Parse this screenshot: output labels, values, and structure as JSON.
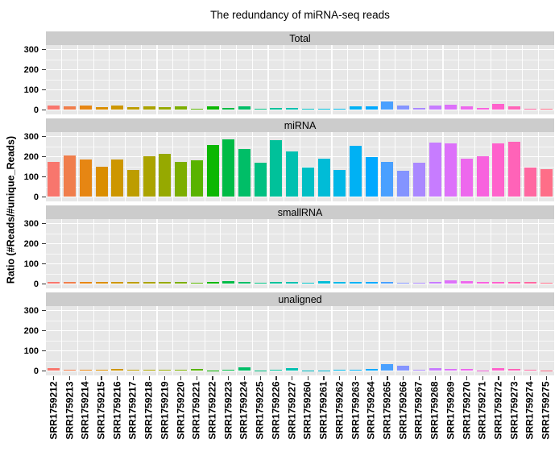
{
  "title": "The redundancy of miRNA-seq reads",
  "y_axis": {
    "label": "Ratio (#Reads/#unique_Reads)",
    "tick_labels": [
      "0",
      "100",
      "200",
      "300"
    ]
  },
  "chart_data": {
    "type": "bar",
    "title": "The redundancy of miRNA-seq reads",
    "xlabel": "",
    "ylabel": "Ratio (#Reads/#unique_Reads)",
    "ylim": [
      0,
      330
    ],
    "yticks": [
      0,
      100,
      200,
      300
    ],
    "yticks_minor": [
      50,
      150,
      250
    ],
    "grid": "white major and minor gridlines on gray panels",
    "legend": "none",
    "facet_layout": "rows",
    "facet_labels": [
      "Total",
      "miRNA",
      "smallRNA",
      "unaligned"
    ],
    "categories": [
      "SRR1759212",
      "SRR1759213",
      "SRR1759214",
      "SRR1759215",
      "SRR1759216",
      "SRR1759217",
      "SRR1759218",
      "SRR1759219",
      "SRR1759220",
      "SRR1759221",
      "SRR1759222",
      "SRR1759223",
      "SRR1759224",
      "SRR1759225",
      "SRR1759226",
      "SRR1759227",
      "SRR1759260",
      "SRR1759261",
      "SRR1759262",
      "SRR1759263",
      "SRR1759264",
      "SRR1759265",
      "SRR1759266",
      "SRR1759267",
      "SRR1759268",
      "SRR1759269",
      "SRR1759270",
      "SRR1759271",
      "SRR1759272",
      "SRR1759273",
      "SRR1759274",
      "SRR1759275"
    ],
    "facets": [
      {
        "name": "Total",
        "values": [
          22,
          20,
          22,
          13,
          22,
          13,
          17,
          15,
          17,
          8,
          18,
          10,
          20,
          7,
          9,
          9,
          6,
          6,
          7,
          17,
          20,
          42,
          22,
          9,
          24,
          25,
          18,
          10,
          30,
          20,
          7,
          5
        ]
      },
      {
        "name": "miRNA",
        "values": [
          175,
          205,
          185,
          150,
          185,
          133,
          204,
          214,
          175,
          182,
          260,
          288,
          240,
          170,
          282,
          227,
          145,
          190,
          135,
          255,
          200,
          175,
          132,
          172,
          270,
          268,
          190,
          203,
          268,
          275,
          145,
          140
        ]
      },
      {
        "name": "smallRNA",
        "values": [
          10,
          10,
          11,
          9,
          10,
          9,
          9,
          9,
          10,
          8,
          12,
          13,
          10,
          7,
          9,
          9,
          8,
          15,
          9,
          9,
          10,
          9,
          8,
          8,
          12,
          20,
          13,
          10,
          10,
          10,
          9,
          8
        ]
      },
      {
        "name": "unaligned",
        "values": [
          13,
          5,
          7,
          7,
          10,
          7,
          7,
          8,
          8,
          12,
          3,
          8,
          18,
          4,
          6,
          16,
          4,
          4,
          5,
          6,
          10,
          33,
          25,
          7,
          15,
          10,
          11,
          3,
          14,
          12,
          6,
          3
        ]
      }
    ],
    "palette": {
      "type": "ggplot-hue",
      "hue_start": 15,
      "hue_step": 11.25,
      "chroma": 100,
      "luminance": 65,
      "first_color": "#F8766D"
    },
    "colors": {
      "panel_bg": "#E7E7E7",
      "strip_bg": "#CCCCCC",
      "grid": "#FFFFFF",
      "axis_text": "#000000",
      "tick_mark": "#333333"
    }
  }
}
